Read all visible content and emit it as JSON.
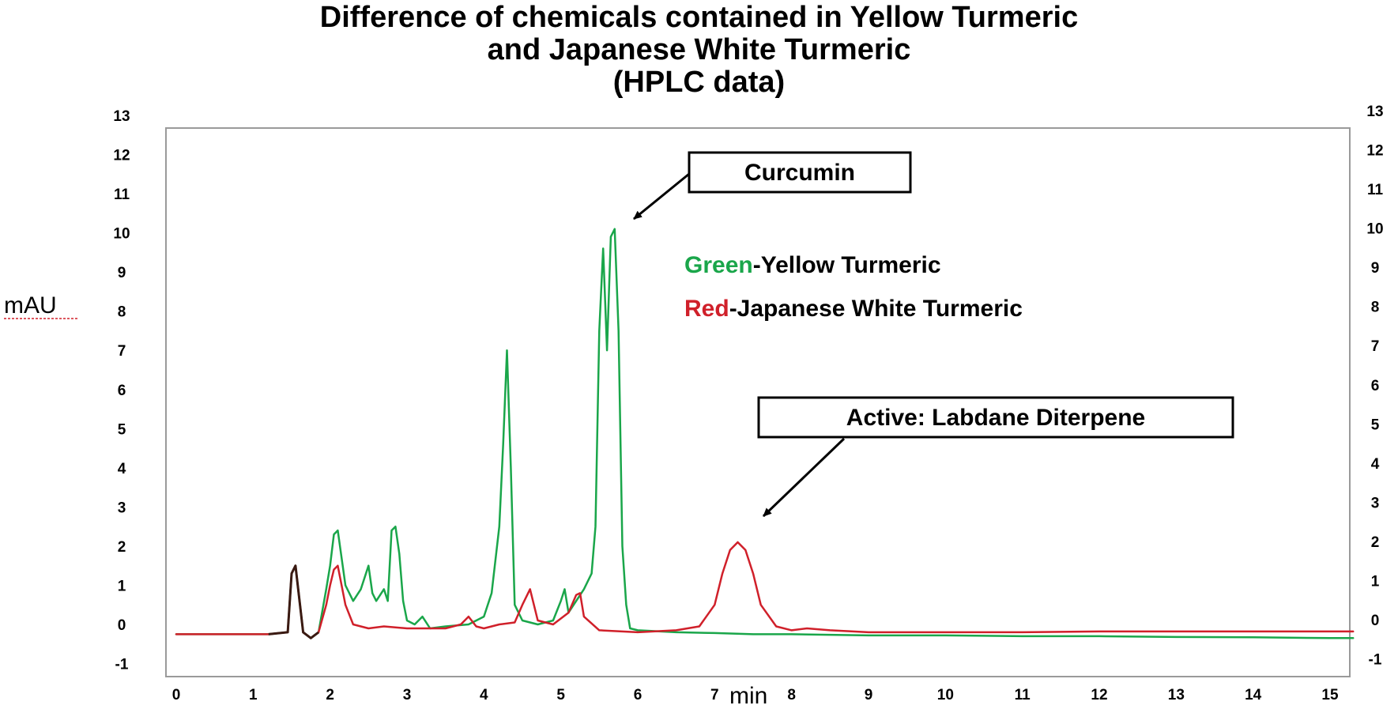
{
  "chart_data": {
    "type": "line",
    "title_lines": [
      "Difference of chemicals contained in Yellow Turmeric",
      "and Japanese White Turmeric",
      "(HPLC data)"
    ],
    "xlabel": "min",
    "ylabel": "mAU",
    "xlim": [
      0,
      15.3
    ],
    "ylim": [
      -1,
      13
    ],
    "x_ticks": [
      "0",
      "1",
      "2",
      "3",
      "4",
      "5",
      "6",
      "7",
      "8",
      "9",
      "10",
      "11",
      "12",
      "13",
      "14",
      "15"
    ],
    "y_ticks": [
      "13",
      "12",
      "11",
      "10",
      "9",
      "8",
      "7",
      "6",
      "5",
      "4",
      "3",
      "2",
      "1",
      "0",
      "-1"
    ],
    "legend": [
      {
        "color_word": "Green",
        "text": "-Yellow Turmeric",
        "color": "#1aa64a"
      },
      {
        "color_word": "Red",
        "text": "-Japanese White Turmeric",
        "color": "#d0202a"
      }
    ],
    "annotations": [
      {
        "text": "Curcumin",
        "points_to": [
          5.7,
          10.1
        ]
      },
      {
        "text": "Active: Labdane Diterpene",
        "points_to": [
          7.3,
          2.2
        ]
      }
    ],
    "series": [
      {
        "name": "Yellow Turmeric",
        "color": "#1aa64a",
        "x": [
          0,
          1.2,
          1.45,
          1.5,
          1.55,
          1.65,
          1.75,
          1.85,
          1.95,
          2.0,
          2.05,
          2.1,
          2.2,
          2.3,
          2.4,
          2.5,
          2.55,
          2.6,
          2.7,
          2.75,
          2.8,
          2.85,
          2.9,
          2.95,
          3.0,
          3.1,
          3.2,
          3.3,
          3.5,
          3.8,
          4.0,
          4.1,
          4.2,
          4.25,
          4.3,
          4.35,
          4.4,
          4.5,
          4.7,
          4.9,
          5.0,
          5.05,
          5.1,
          5.2,
          5.3,
          5.4,
          5.45,
          5.5,
          5.55,
          5.6,
          5.65,
          5.7,
          5.75,
          5.8,
          5.85,
          5.9,
          6.0,
          6.5,
          7.0,
          7.5,
          8.0,
          9.0,
          10.0,
          11.0,
          12.0,
          13.0,
          14.0,
          15.0,
          15.3
        ],
        "y": [
          -0.25,
          -0.25,
          -0.2,
          1.3,
          1.5,
          -0.2,
          -0.35,
          -0.2,
          0.9,
          1.5,
          2.3,
          2.4,
          1.0,
          0.6,
          0.9,
          1.5,
          0.8,
          0.6,
          0.9,
          0.6,
          2.4,
          2.5,
          1.8,
          0.6,
          0.1,
          0.0,
          0.2,
          -0.1,
          -0.05,
          0.0,
          0.2,
          0.8,
          2.5,
          4.6,
          7.0,
          4.0,
          0.5,
          0.1,
          0.0,
          0.1,
          0.6,
          0.9,
          0.3,
          0.6,
          0.9,
          1.3,
          2.5,
          7.5,
          9.6,
          7.0,
          9.9,
          10.1,
          7.5,
          2.0,
          0.5,
          -0.1,
          -0.15,
          -0.2,
          -0.22,
          -0.25,
          -0.25,
          -0.28,
          -0.28,
          -0.3,
          -0.3,
          -0.32,
          -0.33,
          -0.35,
          -0.35
        ]
      },
      {
        "name": "Japanese White Turmeric",
        "color": "#d0202a",
        "x": [
          0,
          1.2,
          1.45,
          1.5,
          1.55,
          1.65,
          1.75,
          1.85,
          1.95,
          2.0,
          2.05,
          2.1,
          2.2,
          2.3,
          2.5,
          2.7,
          3.0,
          3.5,
          3.7,
          3.8,
          3.9,
          4.0,
          4.2,
          4.4,
          4.5,
          4.6,
          4.7,
          4.9,
          5.1,
          5.2,
          5.25,
          5.3,
          5.5,
          6.0,
          6.5,
          6.8,
          7.0,
          7.1,
          7.2,
          7.3,
          7.4,
          7.5,
          7.6,
          7.8,
          8.0,
          8.2,
          8.5,
          9.0,
          10.0,
          11.0,
          12.0,
          13.0,
          14.0,
          15.0,
          15.3
        ],
        "y": [
          -0.25,
          -0.25,
          -0.2,
          1.3,
          1.5,
          -0.2,
          -0.35,
          -0.2,
          0.5,
          1.0,
          1.4,
          1.5,
          0.5,
          0.0,
          -0.1,
          -0.05,
          -0.1,
          -0.1,
          0.0,
          0.2,
          -0.05,
          -0.1,
          0.0,
          0.05,
          0.5,
          0.9,
          0.1,
          0.0,
          0.3,
          0.75,
          0.8,
          0.2,
          -0.15,
          -0.2,
          -0.15,
          -0.05,
          0.5,
          1.3,
          1.9,
          2.1,
          1.9,
          1.3,
          0.5,
          -0.05,
          -0.15,
          -0.1,
          -0.15,
          -0.2,
          -0.2,
          -0.2,
          -0.18,
          -0.18,
          -0.18,
          -0.18,
          -0.18
        ]
      }
    ]
  }
}
